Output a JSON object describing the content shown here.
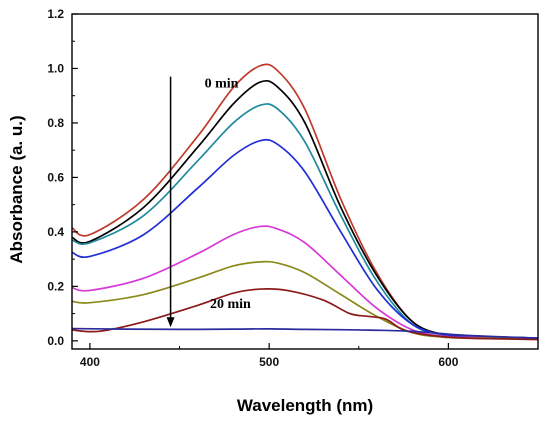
{
  "chart_data": {
    "type": "line",
    "title": "",
    "xlabel": "Wavelength (nm)",
    "ylabel": "Absorbance (a. u.)",
    "xlim": [
      390,
      650
    ],
    "ylim": [
      -0.03,
      1.2
    ],
    "xticks": [
      400,
      500,
      600
    ],
    "yticks": [
      "0.0",
      "0.2",
      "0.4",
      "0.6",
      "0.8",
      "1.0",
      "1.2"
    ],
    "grid": false,
    "legend": "none",
    "annotations": [
      {
        "text": "0 min",
        "x": 464,
        "y": 0.93
      },
      {
        "text": "20 min",
        "x": 467,
        "y": 0.12
      }
    ],
    "arrow": {
      "from": [
        445,
        0.97
      ],
      "to": [
        445,
        0.05
      ],
      "direction": "down"
    },
    "series": [
      {
        "color": "#c0392b",
        "x": [
          390,
          400,
          430,
          460,
          480,
          495,
          505,
          520,
          540,
          560,
          580,
          600,
          620,
          650
        ],
        "y": [
          0.415,
          0.39,
          0.52,
          0.75,
          0.93,
          1.01,
          0.99,
          0.85,
          0.52,
          0.25,
          0.07,
          0.02,
          0.015,
          0.01
        ]
      },
      {
        "color": "#000000",
        "x": [
          390,
          400,
          430,
          460,
          480,
          495,
          505,
          520,
          540,
          560,
          580,
          600,
          620,
          650
        ],
        "y": [
          0.38,
          0.365,
          0.49,
          0.71,
          0.87,
          0.95,
          0.93,
          0.8,
          0.49,
          0.24,
          0.07,
          0.02,
          0.015,
          0.01
        ]
      },
      {
        "color": "#1f8a9e",
        "x": [
          390,
          400,
          430,
          460,
          480,
          495,
          505,
          520,
          540,
          560,
          580,
          600,
          620,
          650
        ],
        "y": [
          0.37,
          0.36,
          0.46,
          0.66,
          0.8,
          0.865,
          0.85,
          0.73,
          0.46,
          0.22,
          0.06,
          0.02,
          0.015,
          0.01
        ]
      },
      {
        "color": "#1f2fd6",
        "x": [
          390,
          400,
          430,
          460,
          480,
          495,
          505,
          520,
          540,
          560,
          580,
          600,
          620,
          650
        ],
        "y": [
          0.325,
          0.31,
          0.39,
          0.56,
          0.68,
          0.735,
          0.72,
          0.62,
          0.4,
          0.19,
          0.06,
          0.02,
          0.015,
          0.01
        ]
      },
      {
        "color": "#d63ad6",
        "x": [
          390,
          400,
          430,
          460,
          480,
          495,
          505,
          520,
          540,
          560,
          580,
          600,
          620,
          650
        ],
        "y": [
          0.195,
          0.185,
          0.23,
          0.32,
          0.39,
          0.42,
          0.41,
          0.36,
          0.24,
          0.12,
          0.04,
          0.015,
          0.012,
          0.01
        ]
      },
      {
        "color": "#8a8a1a",
        "x": [
          390,
          400,
          430,
          460,
          480,
          495,
          505,
          520,
          540,
          560,
          580,
          600,
          620,
          650
        ],
        "y": [
          0.145,
          0.14,
          0.17,
          0.23,
          0.275,
          0.29,
          0.285,
          0.25,
          0.17,
          0.09,
          0.03,
          0.012,
          0.01,
          0.008
        ]
      },
      {
        "color": "#8b1a1a",
        "x": [
          390,
          405,
          430,
          460,
          480,
          495,
          510,
          530,
          545,
          555,
          565,
          575,
          590,
          610,
          650
        ],
        "y": [
          0.04,
          0.035,
          0.07,
          0.13,
          0.175,
          0.19,
          0.185,
          0.15,
          0.1,
          0.09,
          0.08,
          0.04,
          0.02,
          0.01,
          0.005
        ]
      },
      {
        "color": "#2b2b9e",
        "x": [
          390,
          420,
          450,
          480,
          500,
          520,
          550,
          580,
          610,
          650
        ],
        "y": [
          0.045,
          0.043,
          0.042,
          0.043,
          0.044,
          0.042,
          0.04,
          0.035,
          0.02,
          0.01
        ]
      }
    ]
  }
}
